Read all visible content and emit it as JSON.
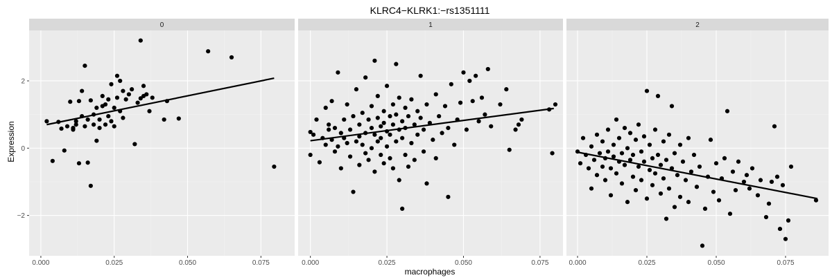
{
  "chart_data": {
    "type": "scatter",
    "title": "KLRC4−KLRK1:−rs1351111",
    "xlabel": "macrophages",
    "ylabel": "Expression",
    "y_ticks": [
      -2,
      0,
      2
    ],
    "y_tick_labels": [
      "−2",
      "0",
      "2"
    ],
    "ylim": [
      -3.2,
      3.5
    ],
    "grid": true,
    "colors": {
      "panel_bg": "#ebebeb",
      "strip_bg": "#d9d9d9",
      "grid_major": "#ffffff",
      "grid_minor": "#f2f2f2",
      "point": "#000000",
      "line": "#000000"
    },
    "panels": [
      {
        "label": "0",
        "xlim": [
          -0.004,
          0.0865
        ],
        "x_ticks": [
          0,
          0.025,
          0.05,
          0.075
        ],
        "x_tick_labels": [
          "0.000",
          "0.025",
          "0.050",
          "0.075"
        ],
        "trend": {
          "x": [
            0.002,
            0.0795
          ],
          "y": [
            0.7,
            2.08
          ]
        },
        "points": [
          [
            0.002,
            0.8
          ],
          [
            0.004,
            -0.38
          ],
          [
            0.006,
            0.78
          ],
          [
            0.007,
            0.58
          ],
          [
            0.008,
            -0.07
          ],
          [
            0.009,
            0.65
          ],
          [
            0.01,
            1.38
          ],
          [
            0.011,
            0.55
          ],
          [
            0.011,
            0.6
          ],
          [
            0.012,
            0.8
          ],
          [
            0.012,
            0.7
          ],
          [
            0.013,
            -0.45
          ],
          [
            0.013,
            1.4
          ],
          [
            0.014,
            0.95
          ],
          [
            0.014,
            1.7
          ],
          [
            0.015,
            2.45
          ],
          [
            0.015,
            0.65
          ],
          [
            0.016,
            -0.43
          ],
          [
            0.016,
            0.85
          ],
          [
            0.017,
            1.42
          ],
          [
            0.017,
            -1.12
          ],
          [
            0.018,
            0.7
          ],
          [
            0.018,
            1.0
          ],
          [
            0.019,
            0.22
          ],
          [
            0.019,
            1.2
          ],
          [
            0.02,
            0.6
          ],
          [
            0.02,
            0.85
          ],
          [
            0.021,
            1.55
          ],
          [
            0.021,
            1.25
          ],
          [
            0.022,
            0.7
          ],
          [
            0.022,
            1.3
          ],
          [
            0.023,
            0.95
          ],
          [
            0.023,
            1.45
          ],
          [
            0.024,
            1.9
          ],
          [
            0.024,
            0.8
          ],
          [
            0.025,
            1.2
          ],
          [
            0.025,
            0.65
          ],
          [
            0.026,
            1.5
          ],
          [
            0.026,
            2.15
          ],
          [
            0.027,
            2.0
          ],
          [
            0.027,
            1.1
          ],
          [
            0.028,
            1.7
          ],
          [
            0.028,
            0.9
          ],
          [
            0.029,
            1.45
          ],
          [
            0.03,
            1.6
          ],
          [
            0.031,
            1.75
          ],
          [
            0.032,
            0.12
          ],
          [
            0.033,
            1.35
          ],
          [
            0.034,
            1.48
          ],
          [
            0.034,
            3.2
          ],
          [
            0.035,
            1.55
          ],
          [
            0.035,
            1.85
          ],
          [
            0.036,
            1.6
          ],
          [
            0.037,
            1.1
          ],
          [
            0.038,
            1.5
          ],
          [
            0.042,
            0.85
          ],
          [
            0.043,
            1.4
          ],
          [
            0.047,
            0.88
          ],
          [
            0.057,
            2.88
          ],
          [
            0.065,
            2.7
          ],
          [
            0.0795,
            -0.55
          ]
        ]
      },
      {
        "label": "1",
        "xlim": [
          -0.004,
          0.0825
        ],
        "x_ticks": [
          0,
          0.025,
          0.05,
          0.075
        ],
        "x_tick_labels": [
          "0.000",
          "0.025",
          "0.050",
          "0.075"
        ],
        "trend": {
          "x": [
            0.0,
            0.0795
          ],
          "y": [
            0.22,
            1.18
          ]
        },
        "points": [
          [
            0.0,
            -0.2
          ],
          [
            0.0,
            0.48
          ],
          [
            0.001,
            0.4
          ],
          [
            0.002,
            0.85
          ],
          [
            0.003,
            -0.42
          ],
          [
            0.004,
            0.3
          ],
          [
            0.005,
            0.1
          ],
          [
            0.005,
            1.2
          ],
          [
            0.006,
            0.55
          ],
          [
            0.006,
            0.7
          ],
          [
            0.007,
            0.25
          ],
          [
            0.007,
            1.4
          ],
          [
            0.008,
            -0.1
          ],
          [
            0.008,
            0.6
          ],
          [
            0.009,
            2.25
          ],
          [
            0.009,
            0.05
          ],
          [
            0.01,
            0.45
          ],
          [
            0.01,
            -0.6
          ],
          [
            0.011,
            0.3
          ],
          [
            0.011,
            0.85
          ],
          [
            0.012,
            0.15
          ],
          [
            0.012,
            1.3
          ],
          [
            0.013,
            -0.25
          ],
          [
            0.013,
            0.55
          ],
          [
            0.014,
            0.95
          ],
          [
            0.014,
            -1.3
          ],
          [
            0.015,
            0.2
          ],
          [
            0.015,
            1.75
          ],
          [
            0.016,
            0.35
          ],
          [
            0.016,
            -0.5
          ],
          [
            0.016,
            0.7
          ],
          [
            0.017,
            1.05
          ],
          [
            0.017,
            0.1
          ],
          [
            0.018,
            -0.15
          ],
          [
            0.018,
            0.45
          ],
          [
            0.018,
            2.1
          ],
          [
            0.019,
            0.85
          ],
          [
            0.019,
            -0.35
          ],
          [
            0.02,
            0.6
          ],
          [
            0.02,
            1.25
          ],
          [
            0.02,
            0.0
          ],
          [
            0.021,
            2.6
          ],
          [
            0.021,
            0.4
          ],
          [
            0.021,
            -0.7
          ],
          [
            0.022,
            0.9
          ],
          [
            0.022,
            0.2
          ],
          [
            0.022,
            1.55
          ],
          [
            0.023,
            -0.2
          ],
          [
            0.023,
            0.65
          ],
          [
            0.023,
            0.3
          ],
          [
            0.024,
            1.1
          ],
          [
            0.024,
            -0.45
          ],
          [
            0.024,
            0.75
          ],
          [
            0.025,
            0.5
          ],
          [
            0.025,
            1.85
          ],
          [
            0.025,
            0.05
          ],
          [
            0.026,
            0.95
          ],
          [
            0.026,
            -0.3
          ],
          [
            0.026,
            0.4
          ],
          [
            0.027,
            1.3
          ],
          [
            0.027,
            0.7
          ],
          [
            0.027,
            -0.6
          ],
          [
            0.028,
            0.2
          ],
          [
            0.028,
            1.0
          ],
          [
            0.028,
            2.5
          ],
          [
            0.029,
            0.55
          ],
          [
            0.029,
            -0.95
          ],
          [
            0.029,
            1.5
          ],
          [
            0.03,
            0.8
          ],
          [
            0.03,
            -1.8
          ],
          [
            0.03,
            0.3
          ],
          [
            0.031,
            1.2
          ],
          [
            0.031,
            -0.2
          ],
          [
            0.031,
            0.6
          ],
          [
            0.032,
            0.95
          ],
          [
            0.032,
            -0.55
          ],
          [
            0.033,
            1.45
          ],
          [
            0.033,
            0.15
          ],
          [
            0.034,
            0.7
          ],
          [
            0.034,
            -0.35
          ],
          [
            0.035,
            1.1
          ],
          [
            0.035,
            0.4
          ],
          [
            0.036,
            2.15
          ],
          [
            0.036,
            0.9
          ],
          [
            0.037,
            -0.1
          ],
          [
            0.037,
            0.55
          ],
          [
            0.038,
            1.3
          ],
          [
            0.038,
            -1.05
          ],
          [
            0.039,
            0.75
          ],
          [
            0.04,
            0.25
          ],
          [
            0.041,
            1.6
          ],
          [
            0.041,
            -0.3
          ],
          [
            0.042,
            0.95
          ],
          [
            0.043,
            0.45
          ],
          [
            0.044,
            1.25
          ],
          [
            0.045,
            -1.45
          ],
          [
            0.045,
            0.6
          ],
          [
            0.046,
            1.9
          ],
          [
            0.047,
            0.1
          ],
          [
            0.048,
            0.85
          ],
          [
            0.049,
            1.35
          ],
          [
            0.05,
            2.25
          ],
          [
            0.051,
            0.55
          ],
          [
            0.052,
            2.0
          ],
          [
            0.053,
            1.4
          ],
          [
            0.054,
            2.15
          ],
          [
            0.055,
            0.8
          ],
          [
            0.056,
            1.5
          ],
          [
            0.057,
            1.0
          ],
          [
            0.058,
            2.35
          ],
          [
            0.059,
            0.65
          ],
          [
            0.062,
            1.3
          ],
          [
            0.064,
            1.75
          ],
          [
            0.065,
            -0.05
          ],
          [
            0.067,
            0.55
          ],
          [
            0.068,
            0.7
          ],
          [
            0.069,
            0.85
          ],
          [
            0.078,
            1.15
          ],
          [
            0.079,
            -0.15
          ],
          [
            0.08,
            1.3
          ]
        ]
      },
      {
        "label": "2",
        "xlim": [
          -0.004,
          0.0905
        ],
        "x_ticks": [
          0,
          0.025,
          0.05,
          0.075
        ],
        "x_tick_labels": [
          "0.000",
          "0.025",
          "0.050",
          "0.075"
        ],
        "trend": {
          "x": [
            0.0,
            0.0865
          ],
          "y": [
            -0.12,
            -1.5
          ]
        },
        "points": [
          [
            0.0,
            -0.1
          ],
          [
            0.001,
            -0.45
          ],
          [
            0.002,
            0.3
          ],
          [
            0.003,
            -0.2
          ],
          [
            0.004,
            -0.6
          ],
          [
            0.005,
            0.05
          ],
          [
            0.005,
            -1.2
          ],
          [
            0.006,
            -0.35
          ],
          [
            0.007,
            0.4
          ],
          [
            0.007,
            -0.8
          ],
          [
            0.008,
            -0.15
          ],
          [
            0.009,
            -0.55
          ],
          [
            0.009,
            0.2
          ],
          [
            0.01,
            -0.95
          ],
          [
            0.01,
            -0.3
          ],
          [
            0.011,
            0.55
          ],
          [
            0.011,
            -0.1
          ],
          [
            0.012,
            -1.4
          ],
          [
            0.012,
            -0.6
          ],
          [
            0.013,
            0.1
          ],
          [
            0.013,
            -0.25
          ],
          [
            0.014,
            0.85
          ],
          [
            0.014,
            -0.75
          ],
          [
            0.015,
            -0.4
          ],
          [
            0.015,
            0.3
          ],
          [
            0.016,
            -1.05
          ],
          [
            0.016,
            -0.15
          ],
          [
            0.017,
            0.6
          ],
          [
            0.017,
            -0.5
          ],
          [
            0.018,
            -1.6
          ],
          [
            0.018,
            0.0
          ],
          [
            0.019,
            -0.35
          ],
          [
            0.019,
            0.45
          ],
          [
            0.02,
            -0.85
          ],
          [
            0.02,
            -0.2
          ],
          [
            0.021,
            0.25
          ],
          [
            0.021,
            -1.25
          ],
          [
            0.022,
            -0.55
          ],
          [
            0.022,
            0.7
          ],
          [
            0.023,
            -0.1
          ],
          [
            0.023,
            -0.95
          ],
          [
            0.024,
            0.35
          ],
          [
            0.024,
            -0.4
          ],
          [
            0.025,
            1.7
          ],
          [
            0.025,
            -1.5
          ],
          [
            0.026,
            -0.65
          ],
          [
            0.026,
            0.1
          ],
          [
            0.027,
            -0.3
          ],
          [
            0.027,
            -1.1
          ],
          [
            0.028,
            0.55
          ],
          [
            0.028,
            -0.75
          ],
          [
            0.029,
            -0.2
          ],
          [
            0.029,
            1.55
          ],
          [
            0.03,
            -1.35
          ],
          [
            0.03,
            -0.5
          ],
          [
            0.031,
            0.2
          ],
          [
            0.031,
            -0.9
          ],
          [
            0.032,
            -2.1
          ],
          [
            0.032,
            -0.35
          ],
          [
            0.033,
            0.4
          ],
          [
            0.033,
            -1.2
          ],
          [
            0.034,
            -0.6
          ],
          [
            0.034,
            1.25
          ],
          [
            0.035,
            -0.15
          ],
          [
            0.035,
            -1.75
          ],
          [
            0.036,
            -0.8
          ],
          [
            0.037,
            0.1
          ],
          [
            0.037,
            -1.45
          ],
          [
            0.038,
            -0.4
          ],
          [
            0.039,
            -0.95
          ],
          [
            0.04,
            0.3
          ],
          [
            0.04,
            -1.6
          ],
          [
            0.041,
            -0.7
          ],
          [
            0.042,
            -0.2
          ],
          [
            0.043,
            -1.15
          ],
          [
            0.044,
            -0.55
          ],
          [
            0.045,
            -2.9
          ],
          [
            0.046,
            -1.8
          ],
          [
            0.047,
            -0.85
          ],
          [
            0.048,
            0.25
          ],
          [
            0.049,
            -1.3
          ],
          [
            0.05,
            -0.45
          ],
          [
            0.051,
            -1.55
          ],
          [
            0.052,
            -0.9
          ],
          [
            0.053,
            -0.3
          ],
          [
            0.054,
            1.1
          ],
          [
            0.055,
            -1.95
          ],
          [
            0.056,
            -0.7
          ],
          [
            0.057,
            -1.25
          ],
          [
            0.058,
            -0.4
          ],
          [
            0.06,
            -1.0
          ],
          [
            0.061,
            -0.8
          ],
          [
            0.062,
            -1.2
          ],
          [
            0.063,
            -0.6
          ],
          [
            0.065,
            -1.4
          ],
          [
            0.066,
            -0.95
          ],
          [
            0.068,
            -2.05
          ],
          [
            0.069,
            -1.65
          ],
          [
            0.07,
            -1.0
          ],
          [
            0.071,
            0.65
          ],
          [
            0.072,
            -0.85
          ],
          [
            0.073,
            -2.4
          ],
          [
            0.074,
            -1.1
          ],
          [
            0.075,
            -2.7
          ],
          [
            0.076,
            -2.15
          ],
          [
            0.077,
            -0.55
          ],
          [
            0.086,
            -1.55
          ]
        ]
      }
    ]
  }
}
